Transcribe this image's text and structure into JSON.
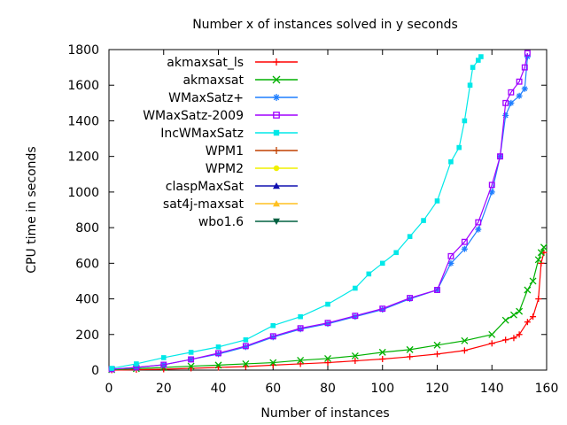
{
  "chart_data": {
    "type": "line",
    "title": "Number x of instances solved in y seconds",
    "xlabel": "Number of instances",
    "ylabel": "CPU time in seconds",
    "xlim": [
      0,
      160
    ],
    "ylim": [
      0,
      1800
    ],
    "xticks": [
      "0",
      "20",
      "40",
      "60",
      "80",
      "100",
      "120",
      "140",
      "160"
    ],
    "yticks": [
      "0",
      "200",
      "400",
      "600",
      "800",
      "1000",
      "1200",
      "1400",
      "1600",
      "1800"
    ],
    "grid": false,
    "legend_position": "top-left",
    "series": [
      {
        "name": "akmaxsat_ls",
        "color": "#ff0000",
        "marker": "plus",
        "x": [
          1,
          10,
          20,
          30,
          40,
          50,
          60,
          70,
          80,
          90,
          100,
          110,
          120,
          130,
          140,
          145,
          148,
          150,
          153,
          155,
          157,
          158,
          159
        ],
        "y": [
          0,
          2,
          5,
          10,
          15,
          20,
          28,
          35,
          42,
          52,
          62,
          75,
          90,
          110,
          150,
          170,
          180,
          200,
          270,
          300,
          400,
          600,
          660
        ]
      },
      {
        "name": "akmaxsat",
        "color": "#00b000",
        "marker": "cross",
        "x": [
          1,
          10,
          20,
          30,
          40,
          50,
          60,
          70,
          80,
          90,
          100,
          110,
          120,
          130,
          140,
          145,
          148,
          150,
          153,
          155,
          157,
          158,
          159
        ],
        "y": [
          2,
          8,
          15,
          22,
          28,
          35,
          42,
          55,
          65,
          80,
          100,
          115,
          140,
          165,
          200,
          280,
          310,
          330,
          450,
          500,
          620,
          660,
          690
        ]
      },
      {
        "name": "WMaxSatz+",
        "color": "#1f7fff",
        "marker": "star",
        "x": [
          1,
          10,
          20,
          30,
          40,
          50,
          60,
          70,
          80,
          90,
          100,
          110,
          120,
          125,
          130,
          135,
          140,
          143,
          145,
          147,
          150,
          152,
          153
        ],
        "y": [
          5,
          15,
          30,
          60,
          90,
          130,
          185,
          230,
          260,
          300,
          340,
          400,
          450,
          600,
          680,
          790,
          1000,
          1200,
          1430,
          1500,
          1540,
          1580,
          1760
        ]
      },
      {
        "name": "WMaxSatz-2009",
        "color": "#a000ff",
        "marker": "square",
        "x": [
          1,
          10,
          20,
          30,
          40,
          50,
          60,
          70,
          80,
          90,
          100,
          110,
          120,
          125,
          130,
          135,
          140,
          143,
          145,
          147,
          150,
          152,
          153
        ],
        "y": [
          5,
          15,
          30,
          60,
          95,
          135,
          190,
          235,
          265,
          305,
          345,
          405,
          450,
          640,
          720,
          830,
          1040,
          1200,
          1500,
          1560,
          1620,
          1700,
          1780
        ]
      },
      {
        "name": "IncWMaxSatz",
        "color": "#00e8e8",
        "marker": "filled-square",
        "x": [
          1,
          10,
          20,
          30,
          40,
          50,
          60,
          70,
          80,
          90,
          95,
          100,
          105,
          110,
          115,
          120,
          125,
          128,
          130,
          132,
          133,
          135,
          136
        ],
        "y": [
          10,
          35,
          70,
          100,
          130,
          170,
          250,
          300,
          370,
          460,
          540,
          600,
          660,
          750,
          840,
          950,
          1170,
          1250,
          1400,
          1600,
          1700,
          1740,
          1760
        ]
      },
      {
        "name": "WPM1",
        "color": "#c04000",
        "marker": "filled-plus",
        "x": [],
        "y": []
      },
      {
        "name": "WPM2",
        "color": "#f0f000",
        "marker": "filled-circle",
        "x": [],
        "y": []
      },
      {
        "name": "claspMaxSat",
        "color": "#1010b0",
        "marker": "filled-triangle",
        "x": [],
        "y": []
      },
      {
        "name": "sat4j-maxsat",
        "color": "#ffc020",
        "marker": "filled-triangle",
        "x": [],
        "y": []
      },
      {
        "name": "wbo1.6",
        "color": "#006040",
        "marker": "filled-triangle-down",
        "x": [],
        "y": []
      }
    ]
  }
}
